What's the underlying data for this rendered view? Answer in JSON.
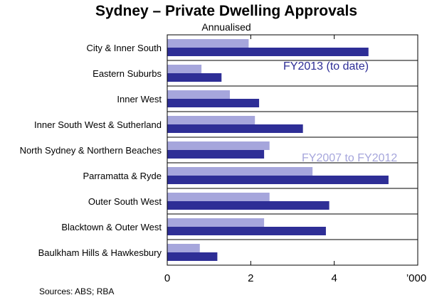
{
  "chart_data": {
    "type": "bar",
    "orientation": "horizontal",
    "title": "Sydney – Private Dwelling Approvals",
    "subtitle": "Annualised",
    "categories": [
      "City & Inner South",
      "Eastern Suburbs",
      "Inner West",
      "Inner South West & Sutherland",
      "North Sydney & Northern Beaches",
      "Parramatta & Ryde",
      "Outer South West",
      "Blacktown & Outer West",
      "Baulkham Hills & Hawkesbury"
    ],
    "series": [
      {
        "name": "FY2007 to FY2012",
        "color": "#a6a6dc",
        "values": [
          1.95,
          0.82,
          1.5,
          2.1,
          2.45,
          3.48,
          2.45,
          2.32,
          0.78
        ]
      },
      {
        "name": "FY2013 (to date)",
        "color": "#2e2e96",
        "values": [
          4.82,
          1.3,
          2.2,
          3.25,
          2.32,
          5.3,
          3.88,
          3.8,
          1.2
        ]
      }
    ],
    "xlim": [
      0,
      6
    ],
    "x_ticks": [
      "0",
      "2",
      "4"
    ],
    "x_tick_values": [
      0,
      2,
      4
    ],
    "x_unit_label": "’000",
    "legend": [
      {
        "label": "FY2013 (to date)",
        "color": "#2e2e96"
      },
      {
        "label": "FY2007 to FY2012",
        "color": "#a6a6dc"
      }
    ],
    "source": "Sources: ABS; RBA"
  }
}
